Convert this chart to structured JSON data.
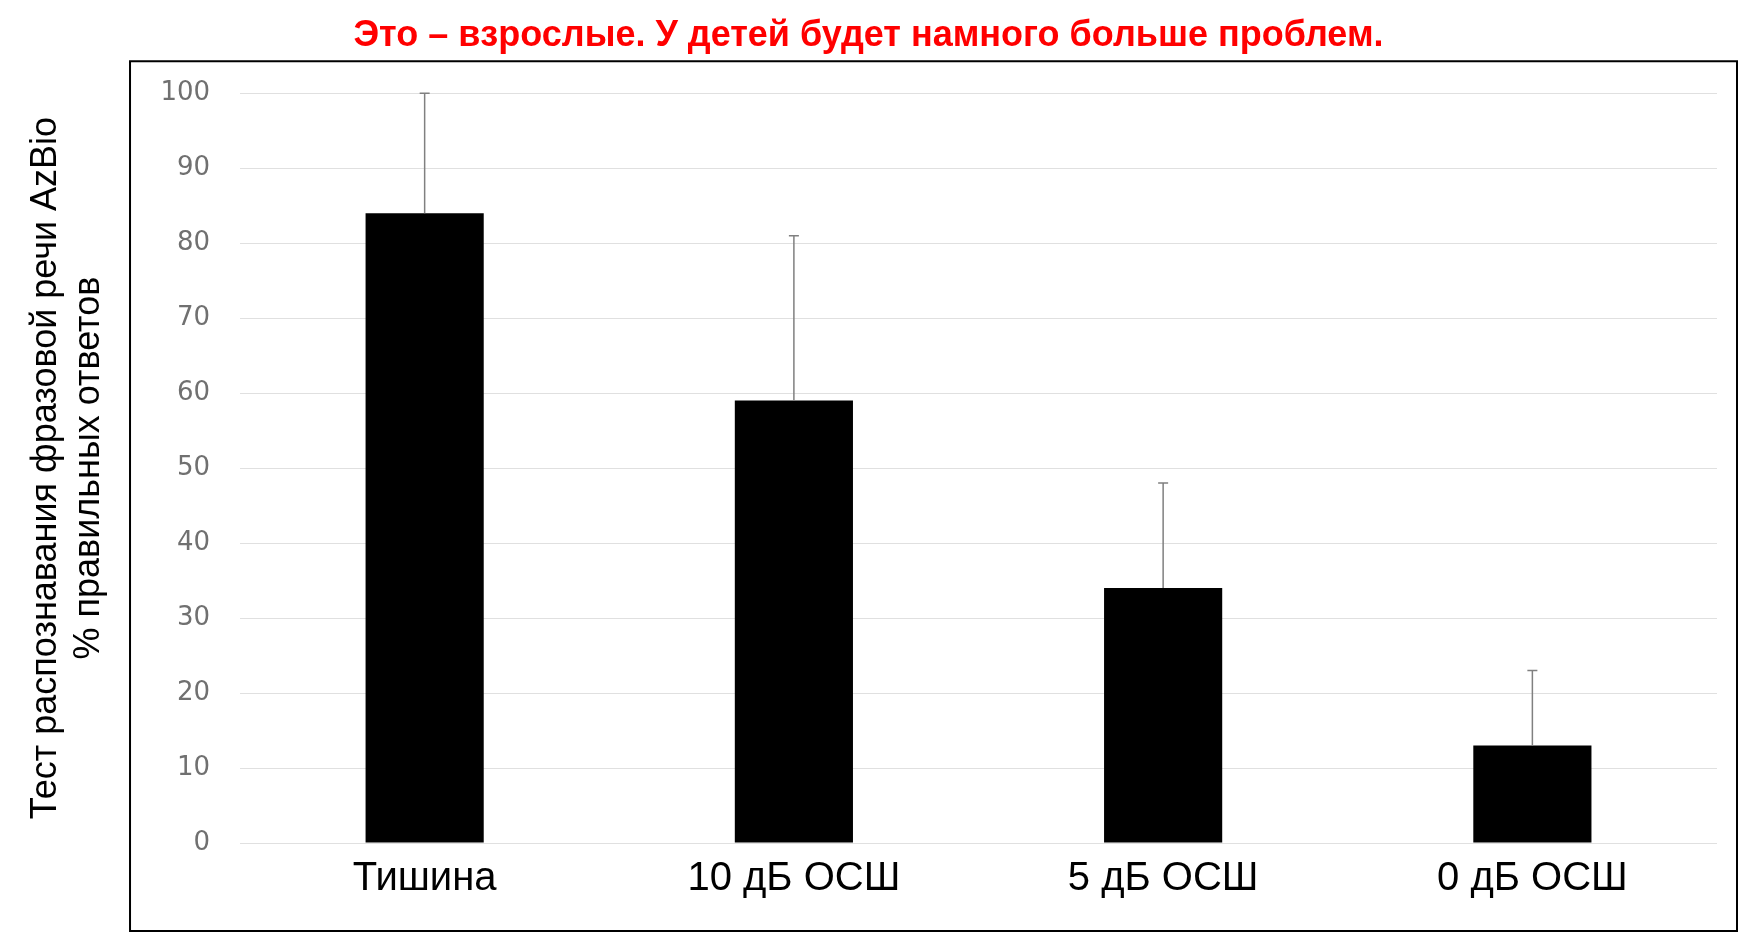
{
  "chart_data": {
    "type": "bar",
    "title": "Это – взрослые. У детей будет намного больше проблем.",
    "ylabel": "Тест распознавания фразовой речи AzBio\n% правильных ответов",
    "categories": [
      "Тишина",
      "10 дБ ОСШ",
      "5 дБ ОСШ",
      "0 дБ ОСШ"
    ],
    "values": [
      84,
      59,
      34,
      13
    ],
    "color": "#000000",
    "errors": [
      [
        84,
        100
      ],
      [
        59,
        81
      ],
      [
        34,
        48
      ],
      [
        13,
        23
      ]
    ],
    "ylim": [
      0,
      100
    ],
    "yticks": [
      0,
      10,
      20,
      30,
      40,
      50,
      60,
      70,
      80,
      90,
      100
    ],
    "grid": "y",
    "legend": false
  }
}
